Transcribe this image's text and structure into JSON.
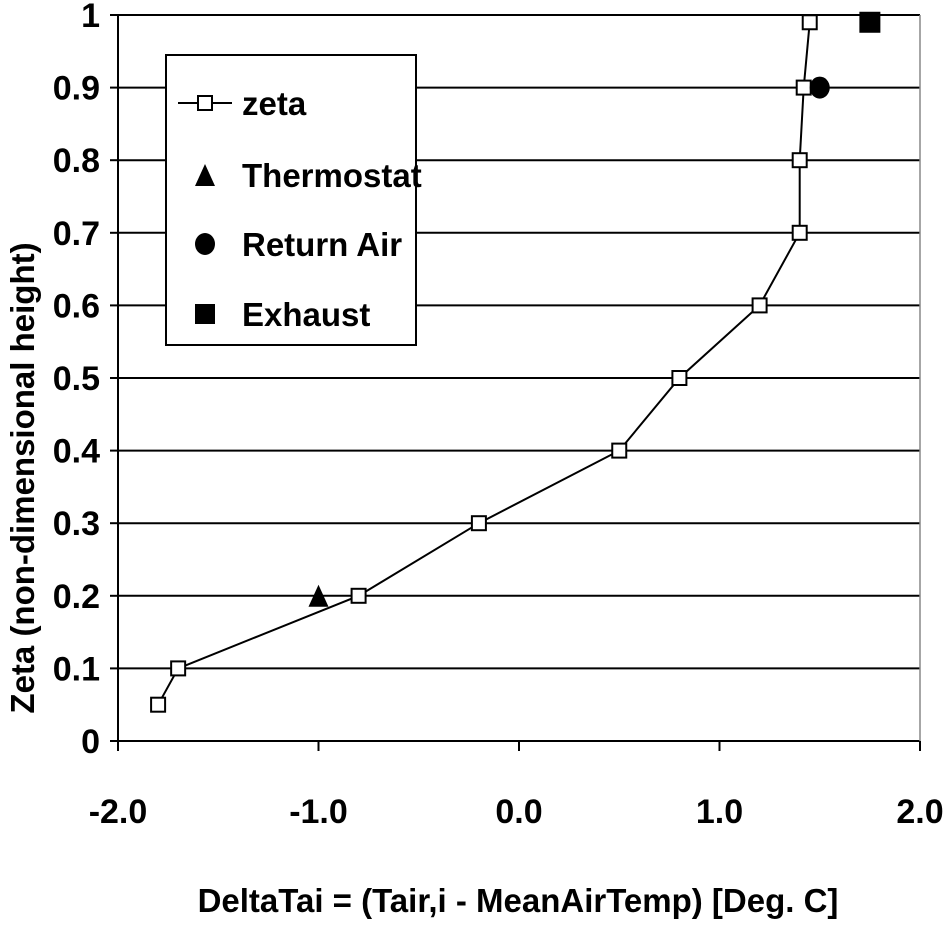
{
  "chart_data": {
    "type": "scatter",
    "title": "",
    "xlabel": "DeltaTai = (Tair,i - MeanAirTemp) [Deg. C]",
    "ylabel": "Zeta (non-dimensional height)",
    "xlim": [
      -2.0,
      2.0
    ],
    "ylim": [
      0,
      1
    ],
    "x_ticks": [
      -2.0,
      -1.0,
      0.0,
      1.0,
      2.0
    ],
    "x_tick_labels": [
      "-2.0",
      "-1.0",
      "0.0",
      "1.0",
      "2.0"
    ],
    "y_ticks": [
      0,
      0.1,
      0.2,
      0.3,
      0.4,
      0.5,
      0.6,
      0.7,
      0.8,
      0.9,
      1
    ],
    "y_tick_labels": [
      "0",
      "0.1",
      "0.2",
      "0.3",
      "0.4",
      "0.5",
      "0.6",
      "0.7",
      "0.8",
      "0.9",
      "1"
    ],
    "grid": "horizontal",
    "legend_position": "top-left",
    "series": [
      {
        "name": "zeta",
        "style": "line-open-square",
        "color": "#000000",
        "points": [
          {
            "x": -1.8,
            "y": 0.05
          },
          {
            "x": -1.7,
            "y": 0.1
          },
          {
            "x": -0.8,
            "y": 0.2
          },
          {
            "x": -0.2,
            "y": 0.3
          },
          {
            "x": 0.5,
            "y": 0.4
          },
          {
            "x": 0.8,
            "y": 0.5
          },
          {
            "x": 1.2,
            "y": 0.6
          },
          {
            "x": 1.4,
            "y": 0.7
          },
          {
            "x": 1.4,
            "y": 0.8
          },
          {
            "x": 1.42,
            "y": 0.9
          },
          {
            "x": 1.45,
            "y": 0.99
          }
        ]
      },
      {
        "name": "Thermostat",
        "style": "filled-triangle",
        "color": "#000000",
        "points": [
          {
            "x": -1.0,
            "y": 0.2
          }
        ]
      },
      {
        "name": "Return Air",
        "style": "filled-circle",
        "color": "#000000",
        "points": [
          {
            "x": 1.5,
            "y": 0.9
          }
        ]
      },
      {
        "name": "Exhaust",
        "style": "filled-square",
        "color": "#000000",
        "points": [
          {
            "x": 1.75,
            "y": 0.99
          }
        ]
      }
    ]
  }
}
